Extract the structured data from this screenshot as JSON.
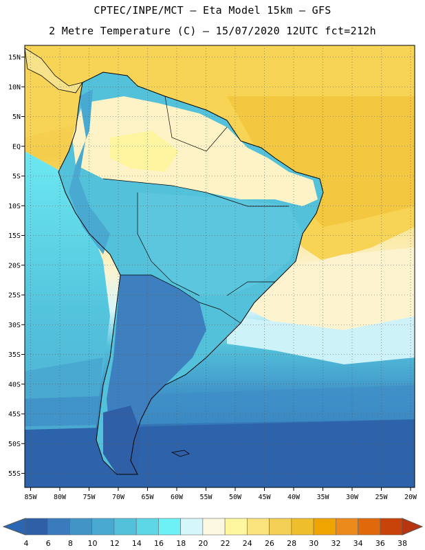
{
  "header": {
    "title_line1": "CPTEC/INPE/MCT –  Eta Model 15km – GFS",
    "title_line2": "2 Metre Temperature (C) – 15/07/2020 12UTC fct=212h"
  },
  "map": {
    "lat_labels": [
      "15N",
      "10N",
      "5N",
      "EQ",
      "5S",
      "10S",
      "15S",
      "20S",
      "25S",
      "30S",
      "35S",
      "40S",
      "45S",
      "50S",
      "55S"
    ],
    "lon_labels": [
      "85W",
      "80W",
      "75W",
      "70W",
      "65W",
      "60W",
      "55W",
      "50W",
      "45W",
      "40W",
      "35W",
      "30W",
      "25W",
      "20W"
    ],
    "grid": "dotted",
    "ocean_temperature_bands_c": [
      {
        "lat_range": "15N-5S",
        "temp_c": "28-30"
      },
      {
        "lat_range": "5S-20S (Atlantic)",
        "temp_c": "26-28"
      },
      {
        "lat_range": "20S-30S (Atlantic)",
        "temp_c": "20-24"
      },
      {
        "lat_range": "Pacific 5S-30S",
        "temp_c": "14-18"
      },
      {
        "lat_range": "30S-45S",
        "temp_c": "10-14"
      },
      {
        "lat_range": "45S-58S",
        "temp_c": "4-8"
      }
    ]
  },
  "colorbar": {
    "labels": [
      "4",
      "6",
      "8",
      "10",
      "12",
      "14",
      "16",
      "18",
      "20",
      "22",
      "24",
      "26",
      "28",
      "30",
      "32",
      "34",
      "36",
      "38"
    ],
    "colors": [
      "#2f5fa6",
      "#3a7bbd",
      "#4293c6",
      "#4aa9d0",
      "#53c1da",
      "#5dd6e6",
      "#6ef0f7",
      "#d6f7fa",
      "#fdf8e1",
      "#fff6a0",
      "#fae27c",
      "#f4cf55",
      "#efbe2c",
      "#f0a400",
      "#ec8a1c",
      "#e06a0b",
      "#c7430a"
    ],
    "under_color": "#2b66b4",
    "over_color": "#b73510"
  }
}
